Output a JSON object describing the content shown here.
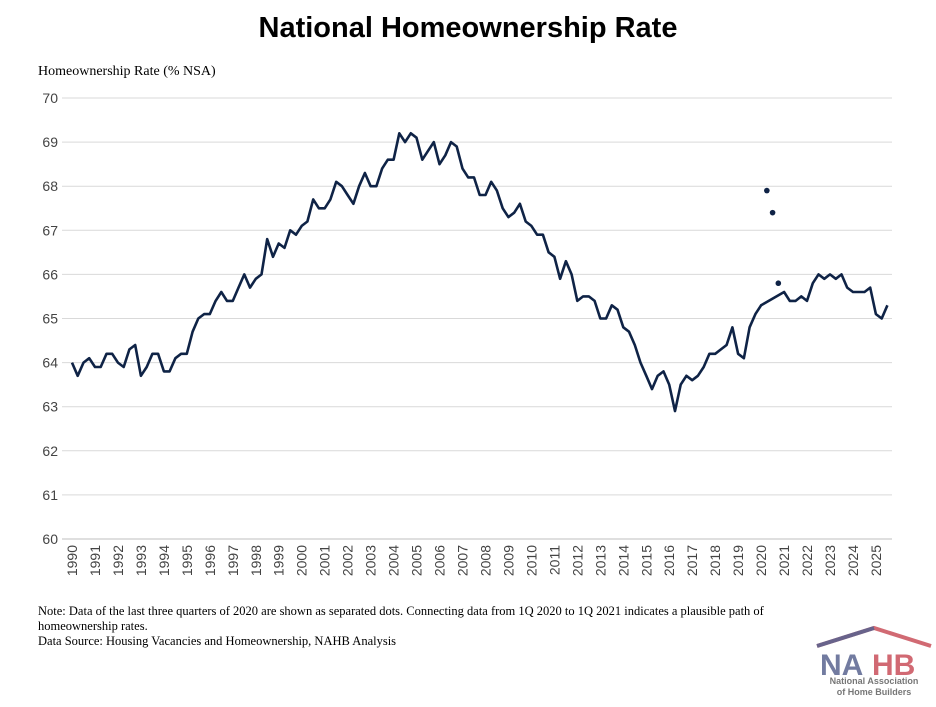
{
  "chart_data": {
    "type": "line",
    "title": "National Homeownership Rate",
    "ylabel": "Homeownership Rate (% NSA)",
    "xlabel": "",
    "ylim": [
      60,
      70
    ],
    "yticks": [
      "60",
      "61",
      "62",
      "63",
      "64",
      "65",
      "66",
      "67",
      "68",
      "69",
      "70"
    ],
    "xticks": [
      "1990",
      "1991",
      "1992",
      "1993",
      "1994",
      "1995",
      "1996",
      "1997",
      "1998",
      "1999",
      "2000",
      "2001",
      "2002",
      "2003",
      "2004",
      "2005",
      "2006",
      "2007",
      "2008",
      "2009",
      "2010",
      "2011",
      "2012",
      "2013",
      "2014",
      "2015",
      "2016",
      "2017",
      "2018",
      "2019",
      "2020",
      "2021",
      "2022",
      "2023",
      "2024",
      "2025"
    ],
    "grid": "horizontal",
    "frequency": "quarterly",
    "start": "1990 Q1",
    "line_color": "#0f2346",
    "values": [
      64.0,
      63.7,
      64.0,
      64.1,
      63.9,
      63.9,
      64.2,
      64.2,
      64.0,
      63.9,
      64.3,
      64.4,
      63.7,
      63.9,
      64.2,
      64.2,
      63.8,
      63.8,
      64.1,
      64.2,
      64.2,
      64.7,
      65.0,
      65.1,
      65.1,
      65.4,
      65.6,
      65.4,
      65.4,
      65.7,
      66.0,
      65.7,
      65.9,
      66.0,
      66.8,
      66.4,
      66.7,
      66.6,
      67.0,
      66.9,
      67.1,
      67.2,
      67.7,
      67.5,
      67.5,
      67.7,
      68.1,
      68.0,
      67.8,
      67.6,
      68.0,
      68.3,
      68.0,
      68.0,
      68.4,
      68.6,
      68.6,
      69.2,
      69.0,
      69.2,
      69.1,
      68.6,
      68.8,
      69.0,
      68.5,
      68.7,
      69.0,
      68.9,
      68.4,
      68.2,
      68.2,
      67.8,
      67.8,
      68.1,
      67.9,
      67.5,
      67.3,
      67.4,
      67.6,
      67.2,
      67.1,
      66.9,
      66.9,
      66.5,
      66.4,
      65.9,
      66.3,
      66.0,
      65.4,
      65.5,
      65.5,
      65.4,
      65.0,
      65.0,
      65.3,
      65.2,
      64.8,
      64.7,
      64.4,
      64.0,
      63.7,
      63.4,
      63.7,
      63.8,
      63.5,
      62.9,
      63.5,
      63.7,
      63.6,
      63.7,
      63.9,
      64.2,
      64.2,
      64.3,
      64.4,
      64.8,
      64.2,
      64.1,
      64.8,
      65.1,
      65.3,
      null,
      null,
      null,
      65.6,
      65.4,
      65.4,
      65.5,
      65.4,
      65.8,
      66.0,
      65.9,
      66.0,
      65.9,
      66.0,
      65.7,
      65.6,
      65.6,
      65.6,
      65.7,
      65.1,
      65.0,
      65.3
    ],
    "separated_points": [
      {
        "x": "2020 Q2",
        "y": 67.9
      },
      {
        "x": "2020 Q3",
        "y": 67.4
      },
      {
        "x": "2020 Q4",
        "y": 65.8
      }
    ]
  },
  "notes": {
    "note_line1": "Note: Data of the last three quarters of 2020 are shown as separated dots. Connecting data from 1Q 2020 to 1Q 2021 indicates a plausible path of",
    "note_line2": "homeownership rates.",
    "source": "Data Source: Housing Vacancies and Homeownership, NAHB Analysis"
  },
  "logo": {
    "text": "NAHB",
    "subtitle_line1": "National Association",
    "subtitle_line2": "of Home Builders"
  }
}
